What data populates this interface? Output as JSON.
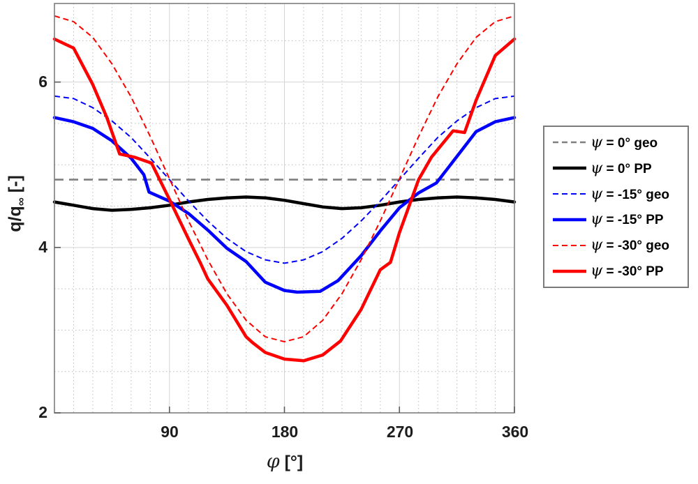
{
  "axes": {
    "x_ticks": [
      "90",
      "180",
      "270",
      "360"
    ],
    "y_ticks": [
      "2",
      "4",
      "6"
    ],
    "xlabel_sym": "φ",
    "xlabel_rest": " [°]",
    "ylabel_main": "q/q",
    "ylabel_sub": "∞",
    "ylabel_rest": " [-]"
  },
  "legend": {
    "items": [
      {
        "sym": "ψ",
        "rest": " = 0° geo"
      },
      {
        "sym": "ψ",
        "rest": " = 0° PP"
      },
      {
        "sym": "ψ",
        "rest": " = -15° geo"
      },
      {
        "sym": "ψ",
        "rest": " = -15° PP"
      },
      {
        "sym": "ψ",
        "rest": " = -30° geo"
      },
      {
        "sym": "ψ",
        "rest": " = -30° PP"
      }
    ]
  },
  "chart_data": {
    "type": "line",
    "title": "",
    "xlabel": "φ [°]",
    "ylabel": "q/q∞ [-]",
    "xlim": [
      0,
      360
    ],
    "ylim": [
      2,
      6.95
    ],
    "x_major_ticks": [
      90,
      180,
      270,
      360
    ],
    "y_major_ticks": [
      2,
      4,
      6
    ],
    "x_minor_step": 15,
    "y_minor_step": 0.5,
    "grid": true,
    "minor_grid": true,
    "legend_position": "right-outside",
    "colors": {
      "gray": "#7f7f7f",
      "black": "#000000",
      "blue": "#0000ff",
      "red": "#ff0000",
      "major_grid": "#d4d4d4",
      "minor_grid": "#bdbdbd",
      "axis_box": "#7d7d7d"
    },
    "series": [
      {
        "name": "psi-0-geo",
        "label": "ψ = 0° geo",
        "color": "#7f7f7f",
        "style": "dashed",
        "width": 2.6,
        "dash": [
          13,
          8
        ],
        "points": [
          [
            0,
            4.82
          ],
          [
            360,
            4.82
          ]
        ]
      },
      {
        "name": "psi-0-PP",
        "label": "ψ = 0° PP",
        "color": "#000000",
        "style": "solid",
        "width": 4.5,
        "points": [
          [
            0,
            4.55
          ],
          [
            15,
            4.51
          ],
          [
            30,
            4.47
          ],
          [
            45,
            4.45
          ],
          [
            60,
            4.46
          ],
          [
            75,
            4.48
          ],
          [
            90,
            4.51
          ],
          [
            105,
            4.55
          ],
          [
            120,
            4.58
          ],
          [
            135,
            4.6
          ],
          [
            150,
            4.61
          ],
          [
            165,
            4.6
          ],
          [
            180,
            4.57
          ],
          [
            195,
            4.53
          ],
          [
            210,
            4.49
          ],
          [
            225,
            4.47
          ],
          [
            240,
            4.48
          ],
          [
            255,
            4.51
          ],
          [
            270,
            4.55
          ],
          [
            285,
            4.58
          ],
          [
            300,
            4.6
          ],
          [
            315,
            4.61
          ],
          [
            330,
            4.6
          ],
          [
            345,
            4.58
          ],
          [
            360,
            4.55
          ]
        ]
      },
      {
        "name": "psi-minus15-geo",
        "label": "ψ = -15° geo",
        "color": "#0000ff",
        "style": "dashed",
        "width": 2,
        "dash": [
          8,
          5
        ],
        "points": [
          [
            0,
            5.83
          ],
          [
            15,
            5.8
          ],
          [
            30,
            5.69
          ],
          [
            45,
            5.53
          ],
          [
            60,
            5.33
          ],
          [
            75,
            5.08
          ],
          [
            90,
            4.82
          ],
          [
            105,
            4.56
          ],
          [
            120,
            4.32
          ],
          [
            135,
            4.11
          ],
          [
            150,
            3.95
          ],
          [
            165,
            3.85
          ],
          [
            180,
            3.81
          ],
          [
            195,
            3.85
          ],
          [
            210,
            3.95
          ],
          [
            225,
            4.11
          ],
          [
            240,
            4.32
          ],
          [
            255,
            4.56
          ],
          [
            270,
            4.82
          ],
          [
            285,
            5.08
          ],
          [
            300,
            5.33
          ],
          [
            315,
            5.53
          ],
          [
            330,
            5.69
          ],
          [
            345,
            5.8
          ],
          [
            360,
            5.83
          ]
        ]
      },
      {
        "name": "psi-minus15-PP",
        "label": "ψ = -15° PP",
        "color": "#0000ff",
        "style": "solid",
        "width": 4.5,
        "points": [
          [
            0,
            5.57
          ],
          [
            15,
            5.52
          ],
          [
            30,
            5.44
          ],
          [
            45,
            5.29
          ],
          [
            60,
            5.08
          ],
          [
            70,
            4.88
          ],
          [
            74,
            4.67
          ],
          [
            90,
            4.56
          ],
          [
            105,
            4.41
          ],
          [
            120,
            4.21
          ],
          [
            135,
            3.99
          ],
          [
            150,
            3.83
          ],
          [
            165,
            3.58
          ],
          [
            180,
            3.48
          ],
          [
            190,
            3.46
          ],
          [
            208,
            3.47
          ],
          [
            222,
            3.6
          ],
          [
            240,
            3.9
          ],
          [
            255,
            4.2
          ],
          [
            270,
            4.48
          ],
          [
            285,
            4.66
          ],
          [
            299,
            4.78
          ],
          [
            315,
            5.1
          ],
          [
            330,
            5.4
          ],
          [
            345,
            5.52
          ],
          [
            360,
            5.57
          ]
        ]
      },
      {
        "name": "psi-minus30-geo",
        "label": "ψ = -30° geo",
        "color": "#ff0000",
        "style": "dashed",
        "width": 2,
        "dash": [
          8,
          5
        ],
        "points": [
          [
            0,
            6.8
          ],
          [
            15,
            6.73
          ],
          [
            30,
            6.54
          ],
          [
            45,
            6.22
          ],
          [
            60,
            5.82
          ],
          [
            75,
            5.34
          ],
          [
            90,
            4.83
          ],
          [
            105,
            4.32
          ],
          [
            120,
            3.85
          ],
          [
            135,
            3.44
          ],
          [
            150,
            3.12
          ],
          [
            165,
            2.92
          ],
          [
            180,
            2.86
          ],
          [
            195,
            2.92
          ],
          [
            210,
            3.12
          ],
          [
            225,
            3.44
          ],
          [
            240,
            3.85
          ],
          [
            255,
            4.32
          ],
          [
            270,
            4.83
          ],
          [
            285,
            5.34
          ],
          [
            300,
            5.82
          ],
          [
            315,
            6.22
          ],
          [
            330,
            6.54
          ],
          [
            345,
            6.73
          ],
          [
            360,
            6.8
          ]
        ]
      },
      {
        "name": "psi-minus30-PP",
        "label": "ψ = -30° PP",
        "color": "#ff0000",
        "style": "solid",
        "width": 4.5,
        "points": [
          [
            0,
            6.52
          ],
          [
            15,
            6.41
          ],
          [
            30,
            5.97
          ],
          [
            41,
            5.57
          ],
          [
            51,
            5.13
          ],
          [
            63,
            5.09
          ],
          [
            76,
            5.02
          ],
          [
            90,
            4.58
          ],
          [
            105,
            4.1
          ],
          [
            114,
            3.82
          ],
          [
            120,
            3.62
          ],
          [
            135,
            3.3
          ],
          [
            150,
            2.92
          ],
          [
            155,
            2.85
          ],
          [
            165,
            2.73
          ],
          [
            180,
            2.65
          ],
          [
            195,
            2.63
          ],
          [
            210,
            2.7
          ],
          [
            224,
            2.87
          ],
          [
            240,
            3.25
          ],
          [
            255,
            3.73
          ],
          [
            263,
            3.82
          ],
          [
            270,
            4.18
          ],
          [
            285,
            4.82
          ],
          [
            295,
            5.09
          ],
          [
            312,
            5.41
          ],
          [
            321,
            5.39
          ],
          [
            330,
            5.78
          ],
          [
            345,
            6.32
          ],
          [
            360,
            6.52
          ]
        ]
      }
    ]
  }
}
